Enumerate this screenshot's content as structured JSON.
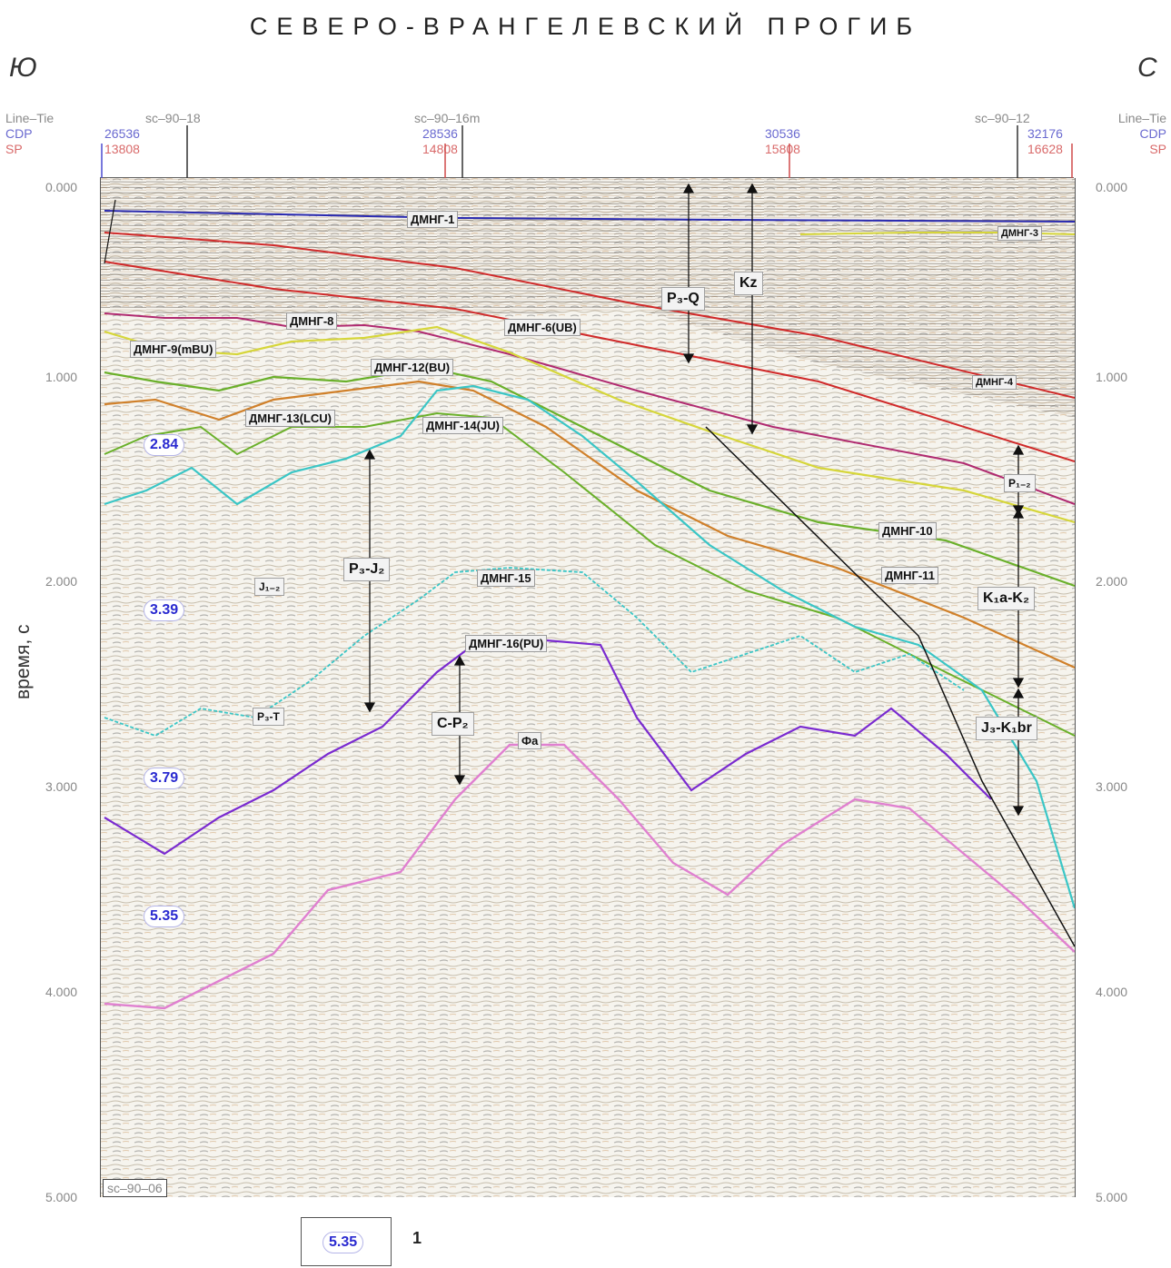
{
  "title": "СЕВЕРО-ВРАНГЕЛЕВСКИЙ ПРОГИБ",
  "direction_left": "Ю",
  "direction_right": "С",
  "header": {
    "left_labels": {
      "line": "Line–Tie",
      "cdp": "CDP",
      "sp": "SP"
    },
    "right_labels": {
      "line": "Line–Tie",
      "cdp": "CDP",
      "sp": "SP"
    },
    "ties": [
      "sc–90–18",
      "sc–90–16m",
      "sc–90–12"
    ],
    "cdp_marks": [
      {
        "cdp": "26536",
        "sp": "13808"
      },
      {
        "cdp": "28536",
        "sp": "14808"
      },
      {
        "cdp": "30536",
        "sp": "15808"
      },
      {
        "cdp": "32176",
        "sp": "16628"
      }
    ]
  },
  "y_axis": {
    "label": "время, с",
    "ticks": [
      "0.000",
      "1.000",
      "2.000",
      "3.000",
      "4.000",
      "5.000"
    ]
  },
  "horizon_labels": [
    "ДМНГ-1",
    "ДМНГ-3",
    "ДМНГ-4",
    "ДМНГ-6(UB)",
    "ДМНГ-8",
    "ДМНГ-9(mBU)",
    "ДМНГ-10",
    "ДМНГ-11",
    "ДМНГ-12(BU)",
    "ДМНГ-13(LCU)",
    "ДМНГ-14(JU)",
    "ДМНГ-15",
    "ДМНГ-16(PU)",
    "Фа"
  ],
  "age_labels": {
    "p3q": "P₃-Q",
    "kz": "Kz",
    "p12": "P₁₋₂",
    "k1ak2": "K₁a-K₂",
    "j3k1br": "J₃-K₁br",
    "p3j2": "P₃-J₂",
    "j12": "J₁₋₂",
    "p3t": "P₃-T",
    "cp2": "C-P₂"
  },
  "velocities": [
    "2.84",
    "3.39",
    "3.79",
    "5.35"
  ],
  "line_tag": "sc–90–06",
  "legend": {
    "value": "5.35",
    "number": "1"
  },
  "colors": {
    "dmng1": "#2a2ab0",
    "red": "#d02a2a",
    "magenta": "#b02a70",
    "yellow": "#d6d63a",
    "green": "#6ab02a",
    "orange": "#d0802a",
    "cyan": "#3ac6c6",
    "purple": "#7a2ad0",
    "pink": "#e080d0",
    "velocity_text": "#2a2ad0"
  }
}
